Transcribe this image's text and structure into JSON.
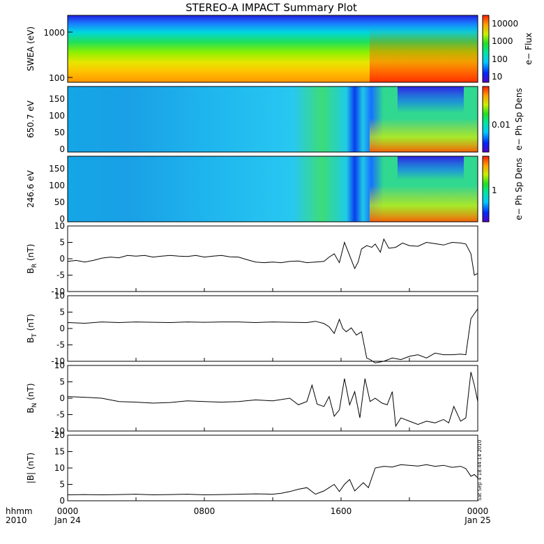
{
  "title": "STEREO-A IMPACT Summary Plot",
  "timestamp": "Sat Sep  4 18:44:14 2010",
  "x_axis": {
    "row1_label": "hhmm",
    "row2_label": "2010",
    "ticks": [
      {
        "time": "0000",
        "date": "Jan 24",
        "hour": 0
      },
      {
        "time": "0800",
        "date": "",
        "hour": 8
      },
      {
        "time": "1600",
        "date": "",
        "hour": 16
      },
      {
        "time": "0000",
        "date": "Jan 25",
        "hour": 24
      }
    ]
  },
  "spectrograms": [
    {
      "id": "swea",
      "ylabel": "SWEA (eV)",
      "yticks": [
        "1000",
        "100"
      ],
      "colorbar_label": "e− Flux",
      "colorbar_ticks": [
        "10000",
        "1000",
        "100",
        "10"
      ]
    },
    {
      "id": "pad650",
      "ylabel": "650.7 eV",
      "yticks": [
        "150",
        "100",
        "50",
        "0"
      ],
      "colorbar_label": "e− Ph Sp Dens",
      "colorbar_ticks": [
        "0.01"
      ]
    },
    {
      "id": "pad246",
      "ylabel": "246.6 eV",
      "yticks": [
        "150",
        "100",
        "50",
        "0"
      ],
      "colorbar_label": "e− Ph Sp Dens",
      "colorbar_ticks": [
        "1"
      ]
    }
  ],
  "chart_data": {
    "type": "line",
    "x_units": "hours since 0000 Jan 24 2010",
    "series": [
      {
        "name": "BR",
        "ylabel": "B_R (nT)",
        "ylim": [
          -10,
          10
        ],
        "yticks": [
          "10",
          "5",
          "0",
          "-5",
          "-10"
        ],
        "x": [
          0,
          0.5,
          1,
          1.5,
          2,
          2.5,
          3,
          3.5,
          4,
          4.5,
          5,
          5.5,
          6,
          6.5,
          7,
          7.5,
          8,
          8.5,
          9,
          9.5,
          10,
          10.5,
          11,
          11.5,
          12,
          12.5,
          13,
          13.5,
          14,
          14.5,
          15,
          15.3,
          15.6,
          15.9,
          16.2,
          16.5,
          16.8,
          17,
          17.2,
          17.5,
          17.8,
          18,
          18.3,
          18.5,
          18.8,
          19.2,
          19.6,
          20,
          20.5,
          21,
          21.5,
          22,
          22.5,
          23,
          23.3,
          23.6,
          23.8,
          24
        ],
        "y": [
          -0.8,
          -0.5,
          -1,
          -0.5,
          0.2,
          0.5,
          0.3,
          1,
          0.8,
          1,
          0.5,
          0.8,
          1,
          0.8,
          0.7,
          1,
          0.5,
          0.8,
          1,
          0.6,
          0.5,
          -0.3,
          -1,
          -1.2,
          -1,
          -1.2,
          -0.8,
          -0.7,
          -1.2,
          -1,
          -0.8,
          0.5,
          1.5,
          -1.2,
          5,
          1,
          -3,
          -1,
          3,
          4,
          3.5,
          4.5,
          2,
          6,
          3.2,
          3.5,
          4.8,
          4,
          3.8,
          5,
          4.6,
          4.2,
          5,
          4.8,
          4.5,
          1.5,
          -5,
          -4.5
        ]
      },
      {
        "name": "BT",
        "ylabel": "B_T (nT)",
        "ylim": [
          -10,
          10
        ],
        "yticks": [
          "10",
          "5",
          "0",
          "-5",
          "-10"
        ],
        "x": [
          0,
          1,
          2,
          3,
          4,
          5,
          6,
          7,
          8,
          9,
          10,
          11,
          12,
          13,
          14,
          14.5,
          15,
          15.3,
          15.6,
          15.9,
          16.1,
          16.3,
          16.6,
          16.9,
          17.2,
          17.5,
          17.7,
          18,
          18.5,
          19,
          19.5,
          20,
          20.5,
          21,
          21.5,
          22,
          22.5,
          23,
          23.3,
          23.6,
          23.8,
          24
        ],
        "y": [
          1.8,
          1.6,
          2,
          1.8,
          2,
          1.9,
          1.8,
          2,
          1.9,
          2,
          2,
          1.8,
          2,
          1.9,
          1.8,
          2.2,
          1.5,
          0.5,
          -1.5,
          2.8,
          0,
          -1,
          0.2,
          -2,
          -1,
          -9,
          -9.5,
          -10.5,
          -10,
          -9,
          -9.5,
          -8.5,
          -8,
          -9,
          -7.5,
          -8,
          -8,
          -7.8,
          -8,
          3,
          4.5,
          6
        ]
      },
      {
        "name": "BN",
        "ylabel": "B_N (nT)",
        "ylim": [
          -10,
          10
        ],
        "yticks": [
          "10",
          "5",
          "0",
          "-5",
          "-10"
        ],
        "x": [
          0,
          1,
          2,
          3,
          4,
          5,
          6,
          7,
          8,
          9,
          10,
          11,
          12,
          13,
          13.5,
          14,
          14.3,
          14.6,
          15,
          15.3,
          15.6,
          15.9,
          16.2,
          16.5,
          16.8,
          17.1,
          17.4,
          17.7,
          18,
          18.4,
          18.7,
          19,
          19.2,
          19.5,
          20,
          20.5,
          21,
          21.5,
          22,
          22.3,
          22.6,
          23,
          23.3,
          23.6,
          23.8,
          24
        ],
        "y": [
          0.5,
          0.3,
          0,
          -1,
          -1.2,
          -1.5,
          -1.3,
          -0.8,
          -1,
          -1.2,
          -1,
          -0.5,
          -0.8,
          0,
          -2,
          -1,
          4,
          -1.8,
          -2.5,
          0.5,
          -5.5,
          -3.5,
          6,
          -2,
          2,
          -6,
          6,
          -1,
          0,
          -1.5,
          -2,
          2,
          -8.5,
          -6,
          -7,
          -8,
          -7,
          -7.5,
          -6.5,
          -7.5,
          -2.5,
          -7,
          -6,
          8,
          4,
          -1
        ]
      },
      {
        "name": "|B|",
        "ylabel": "|B| (nT)",
        "ylim": [
          0,
          20
        ],
        "yticks": [
          "20",
          "15",
          "10",
          "5",
          "0"
        ],
        "x": [
          0,
          1,
          2,
          3,
          4,
          5,
          6,
          7,
          8,
          9,
          10,
          11,
          12,
          12.5,
          13,
          13.5,
          14,
          14.5,
          15,
          15.3,
          15.6,
          15.9,
          16.2,
          16.5,
          16.8,
          17,
          17.3,
          17.6,
          18,
          18.5,
          19,
          19.5,
          20,
          20.5,
          21,
          21.5,
          22,
          22.5,
          23,
          23.3,
          23.6,
          23.8,
          24
        ],
        "y": [
          1.8,
          1.9,
          1.8,
          1.9,
          2,
          1.8,
          1.9,
          2,
          1.8,
          1.9,
          2,
          2.1,
          2,
          2.3,
          2.8,
          3.5,
          4,
          2,
          3,
          4,
          5,
          2.8,
          5,
          6.5,
          3,
          4,
          5.5,
          4,
          10,
          10.5,
          10.3,
          11,
          10.8,
          10.6,
          11,
          10.5,
          10.8,
          10.2,
          10.5,
          9.8,
          7.5,
          8,
          7
        ]
      }
    ]
  }
}
